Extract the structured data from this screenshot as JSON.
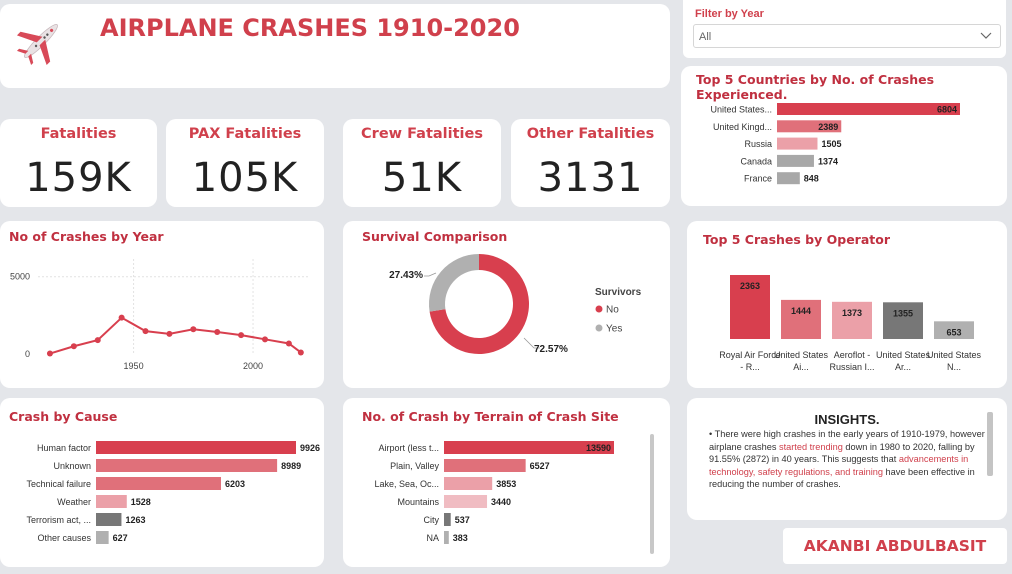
{
  "header": {
    "title": "AIRPLANE CRASHES 1910-2020",
    "icon": "airplane-icon"
  },
  "filter": {
    "label": "Filter by Year",
    "value": "All"
  },
  "kpis": [
    {
      "title": "Fatalities",
      "value": "159K"
    },
    {
      "title": "PAX Fatalities",
      "value": "105K"
    },
    {
      "title": "Crew Fatalities",
      "value": "51K"
    },
    {
      "title": "Other Fatalities",
      "value": "3131"
    }
  ],
  "panels": {
    "countries_title": "Top 5 Countries by No. of Crashes Experienced.",
    "year_title": "No of Crashes by Year",
    "survival_title": "Survival Comparison",
    "operator_title": "Top 5 Crashes by Operator",
    "cause_title": "Crash by Cause",
    "terrain_title": "No. of Crash by Terrain of Crash Site"
  },
  "insights": {
    "title": "INSIGHTS.",
    "text_1": "• There were high crashes in the early years of 1910-1979, however airplane crashes ",
    "highlight_1": "started trending",
    "text_2": " down in 1980 to 2020, falling by 91.55% (2872) in 40 years. This suggests that ",
    "highlight_2": "advancements in technology, safety regulations, and training",
    "text_3": " have been effective in reducing the number of crashes."
  },
  "author": "AKANBI ABDULBASIT",
  "colors": {
    "accent": "#d0404c",
    "bar_dark": "#d83f4e",
    "grey": "#a8a8a8",
    "dark_grey": "#777777"
  },
  "chart_data": [
    {
      "id": "countries",
      "type": "bar",
      "orientation": "horizontal",
      "categories": [
        "United States...",
        "United Kingd...",
        "Russia",
        "Canada",
        "France"
      ],
      "values": [
        6804,
        2389,
        1505,
        1374,
        848
      ],
      "colors": [
        "#d83f4e",
        "#e0707a",
        "#eba0a8",
        "#a8a8a8",
        "#a8a8a8"
      ]
    },
    {
      "id": "year",
      "type": "line",
      "x": [
        1915,
        1925,
        1935,
        1945,
        1955,
        1965,
        1975,
        1985,
        1995,
        2005,
        2015,
        2020
      ],
      "values": [
        30,
        500,
        900,
        2350,
        1480,
        1300,
        1600,
        1420,
        1220,
        950,
        680,
        100
      ],
      "xticks": [
        "1950",
        "2000"
      ],
      "yticks": [
        "0",
        "5000"
      ],
      "ylim": [
        0,
        5500
      ],
      "xlim": [
        1910,
        2023
      ]
    },
    {
      "id": "survival",
      "type": "pie",
      "legend_title": "Survivors",
      "labels": [
        "No",
        "Yes"
      ],
      "values": [
        72.57,
        27.43
      ],
      "value_labels": [
        "72.57%",
        "27.43%"
      ],
      "colors": [
        "#d83f4e",
        "#b0b0b0"
      ]
    },
    {
      "id": "operator",
      "type": "bar",
      "orientation": "vertical",
      "categories": [
        "Royal Air Force - R...",
        "United States Ai...",
        "Aeroflot - Russian I...",
        "United States Ar...",
        "United States N..."
      ],
      "values": [
        2363,
        1444,
        1373,
        1355,
        653
      ],
      "colors": [
        "#d83f4e",
        "#e0707a",
        "#eba0a8",
        "#777777",
        "#b0b0b0"
      ]
    },
    {
      "id": "cause",
      "type": "bar",
      "orientation": "horizontal",
      "categories": [
        "Human factor",
        "Unknown",
        "Technical failure",
        "Weather",
        "Terrorism act, ...",
        "Other causes"
      ],
      "values": [
        9926,
        8989,
        6203,
        1528,
        1263,
        627
      ],
      "colors": [
        "#d83f4e",
        "#e0707a",
        "#e0707a",
        "#eba0a8",
        "#777777",
        "#b0b0b0"
      ]
    },
    {
      "id": "terrain",
      "type": "bar",
      "orientation": "horizontal",
      "categories": [
        "Airport (less t...",
        "Plain, Valley",
        "Lake, Sea, Oc...",
        "Mountains",
        "City",
        "NA"
      ],
      "values": [
        13590,
        6527,
        3853,
        3440,
        537,
        383
      ],
      "colors": [
        "#d83f4e",
        "#e0707a",
        "#eba0a8",
        "#f0bcc2",
        "#777777",
        "#b0b0b0"
      ]
    }
  ]
}
